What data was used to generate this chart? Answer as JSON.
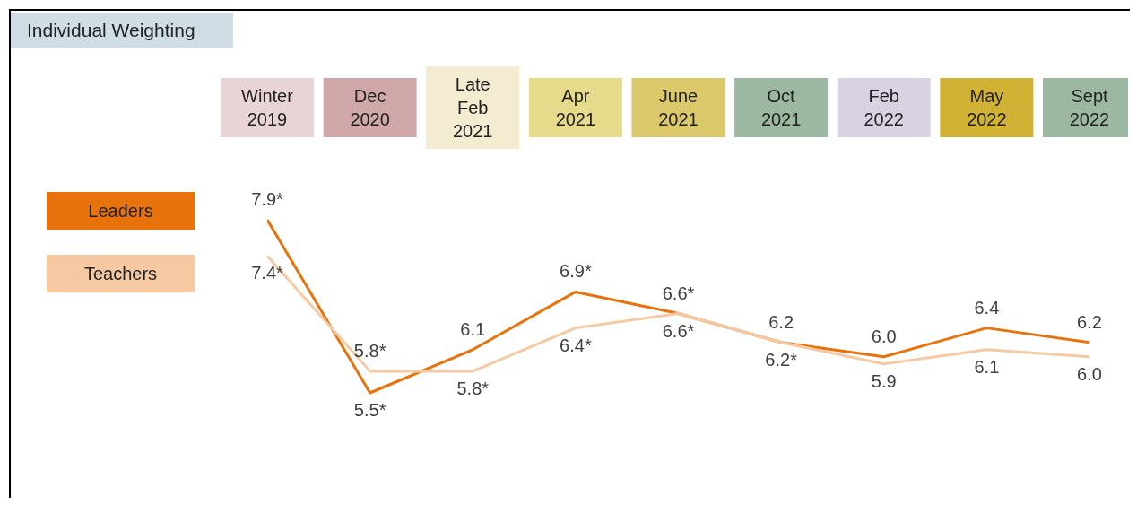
{
  "chart_data": {
    "type": "line",
    "title": "Individual Weighting",
    "categories": [
      "Winter 2019",
      "Dec 2020",
      "Late Feb 2021",
      "Apr 2021",
      "June 2021",
      "Oct 2021",
      "Feb 2022",
      "May 2022",
      "Sept 2022"
    ],
    "series": [
      {
        "name": "Leaders",
        "color": "#e8730c",
        "values": [
          7.9,
          5.5,
          6.1,
          6.9,
          6.6,
          6.2,
          6.0,
          6.4,
          6.2
        ],
        "value_labels": [
          "7.9*",
          "5.5*",
          "6.1",
          "6.9*",
          "6.6*",
          "6.2",
          "6.0",
          "6.4",
          "6.2"
        ]
      },
      {
        "name": "Teachers",
        "color": "#f7c9a3",
        "values": [
          7.4,
          5.8,
          5.8,
          6.4,
          6.6,
          6.2,
          5.9,
          6.1,
          6.0
        ],
        "value_labels": [
          "7.4*",
          "5.8*",
          "5.8*",
          "6.4*",
          "6.6*",
          "6.2*",
          "5.9",
          "6.1",
          "6.0"
        ]
      }
    ],
    "legend": "left",
    "marker": "none",
    "line_style": "solid"
  }
}
